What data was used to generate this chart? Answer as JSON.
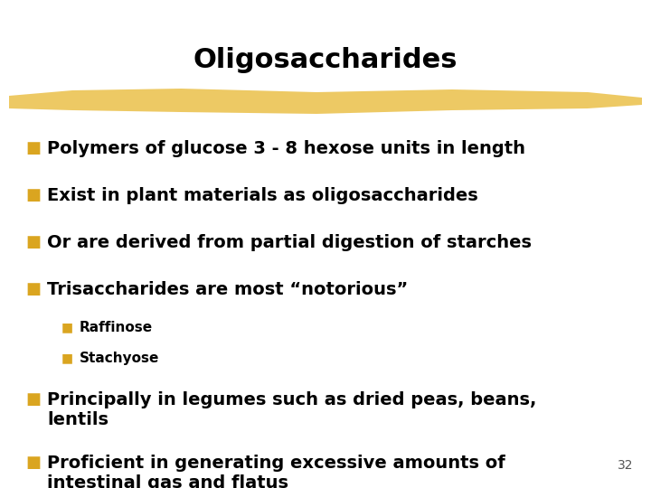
{
  "title": "Oligosaccharides",
  "background_color": "#ffffff",
  "title_color": "#000000",
  "title_fontsize": 22,
  "bullet_color": "#DAA520",
  "bullet_text_color": "#000000",
  "page_number": "32",
  "main_bullets": [
    "Polymers of glucose 3 - 8 hexose units in length",
    "Exist in plant materials as oligosaccharides",
    "Or are derived from partial digestion of starches",
    "Trisaccharides are most “notorious”"
  ],
  "sub_bullets": [
    "Raffinose",
    "Stachyose"
  ],
  "final_bullets": [
    "Principally in legumes such as dried peas, beans,\nlentils",
    "Proficient in generating excessive amounts of\nintestinal gas and flatus"
  ],
  "main_bullet_fontsize": 14,
  "sub_bullet_fontsize": 11,
  "final_bullet_fontsize": 14,
  "brush_color": "#E8B830",
  "brush_alpha": 0.75
}
